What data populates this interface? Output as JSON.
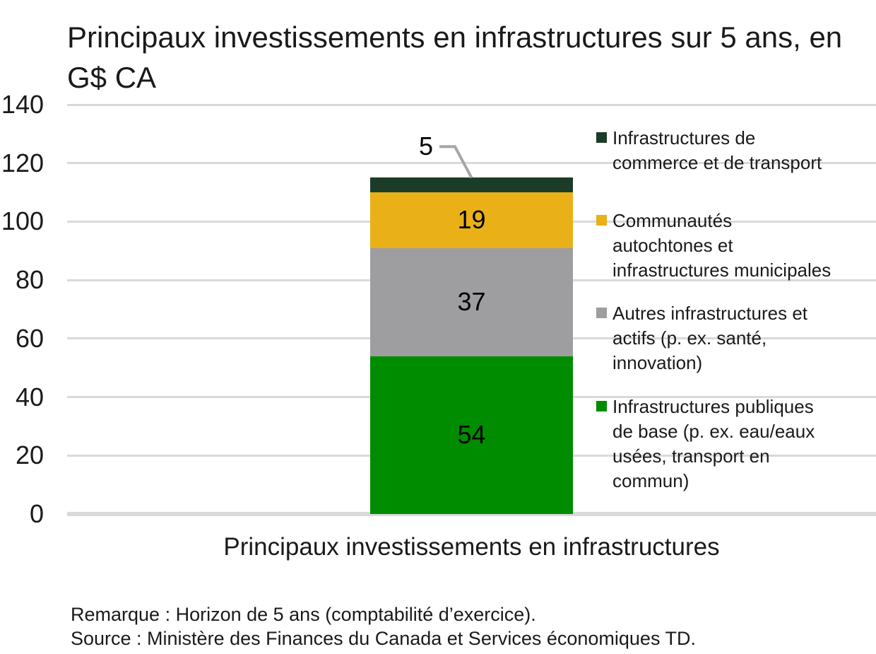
{
  "title": "Principaux investissements en infrastructures sur 5 ans, en G$ CA",
  "notes": {
    "remark": "Remarque : Horizon de 5 ans (comptabilité d’exercice).",
    "source": "Source : Ministère des Finances du Canada et Services économiques TD."
  },
  "chart_data": {
    "type": "bar",
    "stacked": true,
    "title": "Principaux investissements en infrastructures sur 5 ans, en G$ CA",
    "xlabel": "Principaux investissements en infrastructures",
    "ylabel": "",
    "categories": [
      "Principaux investissements en infrastructures"
    ],
    "series": [
      {
        "name": "Infrastructures publiques de base (p. ex. eau/eaux usées, transport en commun)",
        "values": [
          54
        ],
        "color": "#008C00",
        "label_style": "inside"
      },
      {
        "name": "Autres infrastructures et actifs (p. ex. santé, innovation)",
        "values": [
          37
        ],
        "color": "#9E9EA1",
        "label_style": "inside"
      },
      {
        "name": "Communautés autochtones et infrastructures municipales",
        "values": [
          19
        ],
        "color": "#E9B117",
        "label_style": "inside"
      },
      {
        "name": "Infrastructures de commerce et de transport",
        "values": [
          5
        ],
        "color": "#1B3C28",
        "label_style": "callout"
      }
    ],
    "ylim": [
      0,
      140
    ],
    "ytick_step": 20,
    "yticks": [
      0,
      20,
      40,
      60,
      80,
      100,
      120,
      140
    ],
    "grid": "horizontal",
    "legend_position": "right",
    "legend_order": "reversed",
    "colors": {
      "gridline": "#D9D9D9",
      "axis_baseline": "#D9D9D9",
      "callout_line": "#A6A6A6",
      "text": "#1A1A1A"
    }
  }
}
